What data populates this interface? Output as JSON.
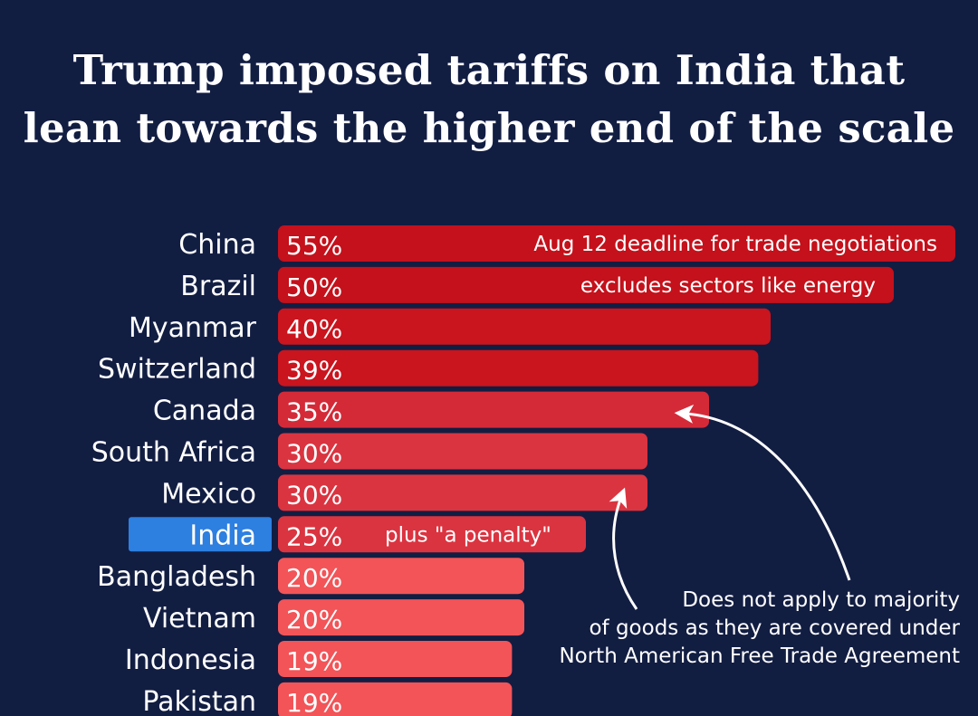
{
  "title": {
    "line1": "Trump imposed tariffs on India that",
    "line2": "lean towards the higher end of the scale"
  },
  "colors": {
    "background": "#121d42",
    "text": "#ffffff",
    "highlight": "#2d7fe0",
    "bar_scale": [
      "#c4111b",
      "#ca141e",
      "#d42a38",
      "#da3440",
      "#f25458"
    ]
  },
  "chart_data": {
    "type": "bar",
    "orientation": "horizontal",
    "categories": [
      "China",
      "Brazil",
      "Myanmar",
      "Switzerland",
      "Canada",
      "South Africa",
      "Mexico",
      "India",
      "Bangladesh",
      "Vietnam",
      "Indonesia",
      "Pakistan"
    ],
    "values": [
      55,
      50,
      40,
      39,
      35,
      30,
      30,
      25,
      20,
      20,
      19,
      19
    ],
    "value_labels": [
      "55%",
      "50%",
      "40%",
      "39%",
      "35%",
      "30%",
      "30%",
      "25%",
      "20%",
      "20%",
      "19%",
      "19%"
    ],
    "highlighted_category": "India",
    "bar_notes": [
      {
        "category": "China",
        "text": "Aug 12 deadline for trade negotiations"
      },
      {
        "category": "Brazil",
        "text": "excludes sectors like energy"
      },
      {
        "category": "India",
        "text": "plus \"a penalty\""
      }
    ],
    "callout": {
      "lines": [
        "Does not apply to majority",
        "of goods as they are covered under",
        "North American Free Trade Agreement"
      ],
      "targets": [
        "Canada",
        "Mexico"
      ]
    }
  }
}
